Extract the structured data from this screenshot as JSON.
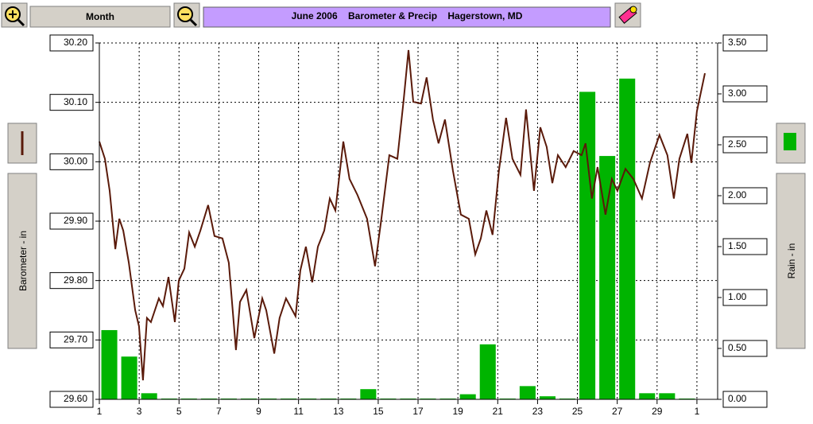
{
  "toolbar": {
    "period": "Month"
  },
  "chart_data": {
    "type": "combo",
    "title": "June 2006    Barometer & Precip    Hagerstown, MD",
    "ylabel": "Barometer - in",
    "y2label": "Rain - in",
    "xlim": [
      1,
      32.04
    ],
    "xticks": [
      1,
      3,
      5,
      7,
      9,
      11,
      13,
      15,
      17,
      19,
      21,
      23,
      25,
      27,
      29,
      {
        "value": 31,
        "label": "1"
      }
    ],
    "ylim": [
      29.6,
      30.2
    ],
    "yticks": [
      {
        "value": 29.6,
        "label": "29.60"
      },
      {
        "value": 29.7,
        "label": "29.70"
      },
      {
        "value": 29.8,
        "label": "29.80"
      },
      {
        "value": 29.9,
        "label": "29.90"
      },
      {
        "value": 30,
        "label": "30.00"
      },
      {
        "value": 30.1,
        "label": "30.10"
      },
      {
        "value": 30.2,
        "label": "30.20"
      }
    ],
    "y2lim": [
      0,
      3.5
    ],
    "y2ticks": [
      {
        "value": 0,
        "label": "0.00"
      },
      {
        "value": 0.5,
        "label": "0.50"
      },
      {
        "value": 1,
        "label": "1.00"
      },
      {
        "value": 1.5,
        "label": "1.50"
      },
      {
        "value": 2,
        "label": "2.00"
      },
      {
        "value": 2.5,
        "label": "2.50"
      },
      {
        "value": 3,
        "label": "3.00"
      },
      {
        "value": 3.5,
        "label": "3.50"
      }
    ],
    "grid": true,
    "series": [
      {
        "type": "line",
        "color": "#5a1a0a",
        "x": [
          1.0,
          1.28,
          1.52,
          1.8,
          2.0,
          2.2,
          2.48,
          2.8,
          2.99,
          3.19,
          3.39,
          3.59,
          3.99,
          4.19,
          4.47,
          4.79,
          4.99,
          5.27,
          5.51,
          5.79,
          6.07,
          6.46,
          6.78,
          7.18,
          7.5,
          7.86,
          8.06,
          8.38,
          8.78,
          9.18,
          9.38,
          9.78,
          10.05,
          10.37,
          10.85,
          11.09,
          11.37,
          11.69,
          11.97,
          12.29,
          12.57,
          12.85,
          13.25,
          13.56,
          13.96,
          14.44,
          14.84,
          15.16,
          15.56,
          15.96,
          16.28,
          16.52,
          16.76,
          17.15,
          17.43,
          17.75,
          18.03,
          18.35,
          18.75,
          19.15,
          19.55,
          19.87,
          20.15,
          20.43,
          20.74,
          21.06,
          21.42,
          21.74,
          22.14,
          22.42,
          22.82,
          23.14,
          23.46,
          23.74,
          24.02,
          24.41,
          24.81,
          25.21,
          25.41,
          25.73,
          26.01,
          26.41,
          26.73,
          27.01,
          27.41,
          27.81,
          28.24,
          28.64,
          29.12,
          29.52,
          29.84,
          30.12,
          30.52,
          30.72,
          31.0,
          31.4
        ],
        "values": [
          30.034,
          30.005,
          29.951,
          29.853,
          29.904,
          29.884,
          29.83,
          29.75,
          29.723,
          29.632,
          29.737,
          29.73,
          29.77,
          29.757,
          29.806,
          29.73,
          29.8,
          29.82,
          29.881,
          29.857,
          29.884,
          29.927,
          29.875,
          29.871,
          29.83,
          29.683,
          29.764,
          29.784,
          29.703,
          29.77,
          29.75,
          29.677,
          29.737,
          29.77,
          29.74,
          29.817,
          29.857,
          29.797,
          29.857,
          29.884,
          29.938,
          29.918,
          30.034,
          29.971,
          29.944,
          29.904,
          29.824,
          29.904,
          30.011,
          30.005,
          30.105,
          30.188,
          30.101,
          30.098,
          30.142,
          30.071,
          30.031,
          30.071,
          29.985,
          29.911,
          29.904,
          29.844,
          29.871,
          29.918,
          29.877,
          29.985,
          30.074,
          30.005,
          29.978,
          30.088,
          29.951,
          30.058,
          30.025,
          29.964,
          30.011,
          29.991,
          30.018,
          30.011,
          30.031,
          29.938,
          29.991,
          29.911,
          29.971,
          29.951,
          29.988,
          29.971,
          29.938,
          29.998,
          30.045,
          30.011,
          29.938,
          30.005,
          30.047,
          29.998,
          30.085,
          30.149
        ]
      },
      {
        "type": "bar",
        "axis": "y2",
        "color": "#00b400",
        "x": [
          1,
          2,
          3,
          4,
          5,
          6,
          7,
          8,
          9,
          10,
          11,
          12,
          13,
          14,
          15,
          16,
          17,
          18,
          19,
          20,
          21,
          22,
          23,
          24,
          25,
          26,
          27,
          28,
          29,
          30
        ],
        "values": [
          0.68,
          0.42,
          0.06,
          0,
          0,
          0,
          0,
          0,
          0,
          0,
          0,
          0,
          0,
          0.1,
          0,
          0,
          0,
          0,
          0.05,
          0.54,
          0,
          0.13,
          0.03,
          0,
          3.02,
          2.39,
          3.15,
          0.06,
          0.06,
          0
        ]
      }
    ]
  }
}
